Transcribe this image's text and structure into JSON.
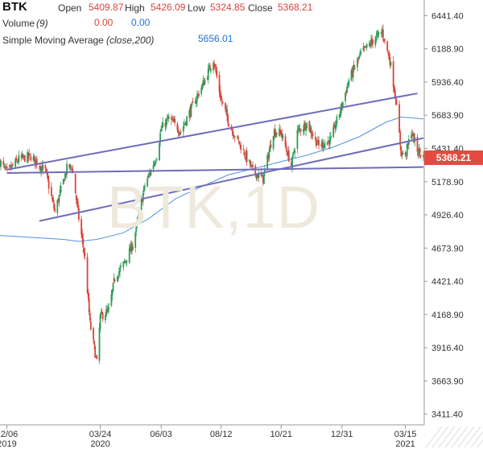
{
  "header": {
    "symbol": "BTK",
    "open_label": "Open",
    "open_value": "5409.87",
    "high_label": "High",
    "high_value": "5426.09",
    "low_label": "Low",
    "low_value": "5324.85",
    "close_label": "Close",
    "close_value": "5368.21",
    "volume_label": "Volume",
    "volume_param": "(9)",
    "volume_value_1": "0.00",
    "volume_value_2": "0.00",
    "sma_label": "Simple Moving Average",
    "sma_param": "(close,200)",
    "sma_value": "5656.01"
  },
  "watermark": "BTK,1D",
  "last_price_tag": "5368.21",
  "colors": {
    "up": "#2e9b57",
    "down": "#d9443a",
    "sma": "#4e93e0",
    "trendline": "#6f6cb8",
    "price_tag": "#e5493f",
    "watermark": "#efe9dd"
  },
  "chart_data": {
    "type": "candlestick",
    "symbol": "BTK",
    "interval": "1D",
    "y_axis": {
      "ticks": [
        3411.4,
        3663.9,
        3916.4,
        4168.9,
        4421.4,
        4673.9,
        4926.4,
        5178.9,
        5431.4,
        5683.9,
        5936.4,
        6188.9,
        6441.4
      ],
      "tick_labels": [
        "3411.40",
        "3663.90",
        "3916.40",
        "4168.90",
        "4421.40",
        "4673.90",
        "4926.40",
        "5178.90",
        "5431.40",
        "5683.90",
        "5936.40",
        "6188.90",
        "6441.40"
      ],
      "range": [
        3330,
        6560
      ],
      "position": "right"
    },
    "x_axis": {
      "labels": [
        {
          "date": "2019-12-06",
          "top": "12/06",
          "bottom": "2019"
        },
        {
          "date": "2020-03-24",
          "top": "03/24",
          "bottom": "2020"
        },
        {
          "date": "2020-06-03",
          "top": "06/03",
          "bottom": ""
        },
        {
          "date": "2020-08-12",
          "top": "08/12",
          "bottom": ""
        },
        {
          "date": "2020-10-21",
          "top": "10/21",
          "bottom": ""
        },
        {
          "date": "2020-12-31",
          "top": "12/31",
          "bottom": ""
        },
        {
          "date": "2021-03-15",
          "top": "03/15",
          "bottom": "2021"
        }
      ],
      "range": [
        "2019-11-28",
        "2021-04-06"
      ]
    },
    "price_path": [
      [
        "2019-11-28",
        5330
      ],
      [
        "2019-12-06",
        5250
      ],
      [
        "2019-12-20",
        5350
      ],
      [
        "2020-01-03",
        5370
      ],
      [
        "2020-01-20",
        5260
      ],
      [
        "2020-01-31",
        4950
      ],
      [
        "2020-02-14",
        5280
      ],
      [
        "2020-02-20",
        5290
      ],
      [
        "2020-02-28",
        4900
      ],
      [
        "2020-03-06",
        4600
      ],
      [
        "2020-03-12",
        4100
      ],
      [
        "2020-03-20",
        3800
      ],
      [
        "2020-03-24",
        4150
      ],
      [
        "2020-04-03",
        4200
      ],
      [
        "2020-04-10",
        4450
      ],
      [
        "2020-04-20",
        4550
      ],
      [
        "2020-05-01",
        4700
      ],
      [
        "2020-05-15",
        5150
      ],
      [
        "2020-05-29",
        5380
      ],
      [
        "2020-06-03",
        5580
      ],
      [
        "2020-06-12",
        5660
      ],
      [
        "2020-06-26",
        5560
      ],
      [
        "2020-07-10",
        5760
      ],
      [
        "2020-07-24",
        5950
      ],
      [
        "2020-08-03",
        6110
      ],
      [
        "2020-08-12",
        5800
      ],
      [
        "2020-08-24",
        5580
      ],
      [
        "2020-09-04",
        5450
      ],
      [
        "2020-09-18",
        5260
      ],
      [
        "2020-09-30",
        5200
      ],
      [
        "2020-10-12",
        5560
      ],
      [
        "2020-10-21",
        5550
      ],
      [
        "2020-11-02",
        5300
      ],
      [
        "2020-11-09",
        5560
      ],
      [
        "2020-11-20",
        5620
      ],
      [
        "2020-12-04",
        5450
      ],
      [
        "2020-12-18",
        5500
      ],
      [
        "2020-12-31",
        5760
      ],
      [
        "2021-01-08",
        5950
      ],
      [
        "2021-01-22",
        6150
      ],
      [
        "2021-02-05",
        6250
      ],
      [
        "2021-02-16",
        6320
      ],
      [
        "2021-02-25",
        6100
      ],
      [
        "2021-03-04",
        5800
      ],
      [
        "2021-03-10",
        5400
      ],
      [
        "2021-03-15",
        5380
      ],
      [
        "2021-03-22",
        5560
      ],
      [
        "2021-03-29",
        5420
      ],
      [
        "2021-04-05",
        5368
      ]
    ],
    "ohlc_last": {
      "open": 5409.87,
      "high": 5426.09,
      "low": 5324.85,
      "close": 5368.21
    },
    "sma": {
      "name": "Simple Moving Average (close,200)",
      "last_value": 5656.01,
      "points": [
        [
          "2019-11-28",
          4770
        ],
        [
          "2020-02-10",
          4740
        ],
        [
          "2020-02-28",
          4725
        ],
        [
          "2020-03-20",
          4740
        ],
        [
          "2020-04-20",
          4790
        ],
        [
          "2020-05-20",
          4900
        ],
        [
          "2020-06-20",
          5050
        ],
        [
          "2020-07-20",
          5140
        ],
        [
          "2020-08-20",
          5230
        ],
        [
          "2020-09-20",
          5280
        ],
        [
          "2020-10-20",
          5330
        ],
        [
          "2020-11-20",
          5380
        ],
        [
          "2020-12-20",
          5440
        ],
        [
          "2021-01-20",
          5520
        ],
        [
          "2021-02-20",
          5630
        ],
        [
          "2021-03-10",
          5670
        ],
        [
          "2021-04-05",
          5656
        ]
      ]
    },
    "trendlines": [
      {
        "from": [
          "2019-12-06",
          5270
        ],
        "to": [
          "2021-03-29",
          5850
        ]
      },
      {
        "from": [
          "2019-12-06",
          5245
        ],
        "to": [
          "2021-04-05",
          5290
        ]
      },
      {
        "from": [
          "2020-01-13",
          4880
        ],
        "to": [
          "2021-04-05",
          5510
        ]
      }
    ],
    "volume": {
      "period": 9,
      "values": [
        0.0,
        0.0
      ]
    }
  }
}
